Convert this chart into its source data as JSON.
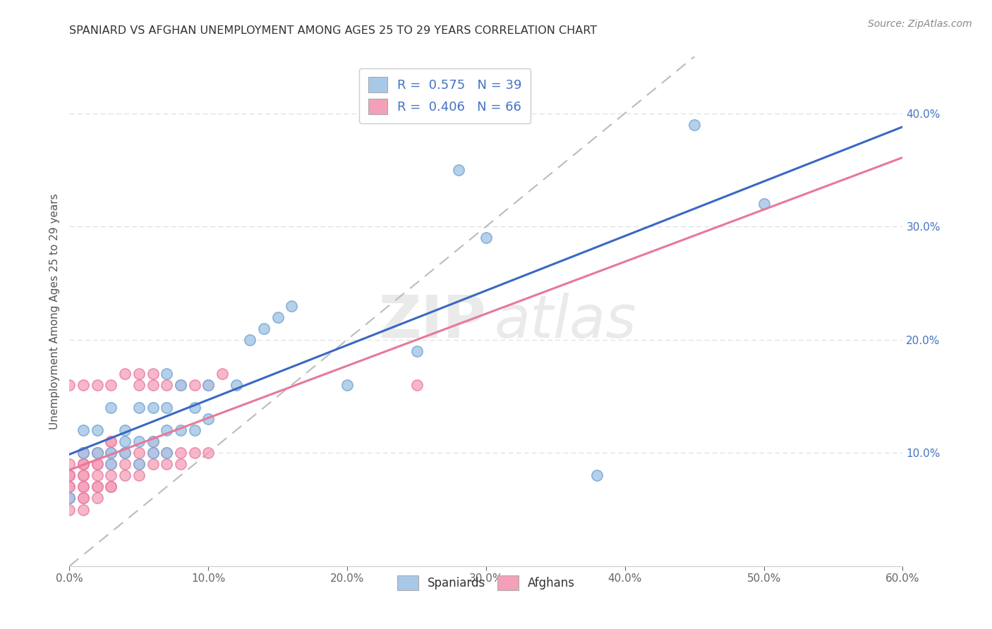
{
  "title": "SPANIARD VS AFGHAN UNEMPLOYMENT AMONG AGES 25 TO 29 YEARS CORRELATION CHART",
  "source": "Source: ZipAtlas.com",
  "ylabel": "Unemployment Among Ages 25 to 29 years",
  "xlim": [
    0.0,
    0.6
  ],
  "ylim": [
    0.0,
    0.45
  ],
  "xticks": [
    0.0,
    0.1,
    0.2,
    0.3,
    0.4,
    0.5,
    0.6
  ],
  "yticks": [
    0.1,
    0.2,
    0.3,
    0.4
  ],
  "spaniards_color": "#a8c8e8",
  "afghans_color": "#f4a0b8",
  "spaniards_edge": "#7aaad4",
  "afghans_edge": "#e878a0",
  "spaniards_R": 0.575,
  "spaniards_N": 39,
  "afghans_R": 0.406,
  "afghans_N": 66,
  "spaniards_line_color": "#3a68c4",
  "afghans_line_color": "#e87898",
  "diagonal_color": "#bbbbbb",
  "grid_color": "#dddddd",
  "spaniards_x": [
    0.0,
    0.01,
    0.01,
    0.02,
    0.02,
    0.03,
    0.03,
    0.03,
    0.04,
    0.04,
    0.04,
    0.05,
    0.05,
    0.05,
    0.06,
    0.06,
    0.06,
    0.07,
    0.07,
    0.07,
    0.07,
    0.08,
    0.08,
    0.09,
    0.09,
    0.1,
    0.1,
    0.12,
    0.13,
    0.14,
    0.15,
    0.16,
    0.2,
    0.25,
    0.28,
    0.3,
    0.38,
    0.45,
    0.5
  ],
  "spaniards_y": [
    0.06,
    0.1,
    0.12,
    0.1,
    0.12,
    0.09,
    0.1,
    0.14,
    0.1,
    0.11,
    0.12,
    0.09,
    0.11,
    0.14,
    0.1,
    0.11,
    0.14,
    0.1,
    0.12,
    0.14,
    0.17,
    0.12,
    0.16,
    0.12,
    0.14,
    0.13,
    0.16,
    0.16,
    0.2,
    0.21,
    0.22,
    0.23,
    0.16,
    0.19,
    0.35,
    0.29,
    0.08,
    0.39,
    0.32
  ],
  "afghans_x": [
    0.0,
    0.0,
    0.0,
    0.0,
    0.0,
    0.0,
    0.0,
    0.0,
    0.0,
    0.0,
    0.01,
    0.01,
    0.01,
    0.01,
    0.01,
    0.01,
    0.01,
    0.01,
    0.01,
    0.01,
    0.01,
    0.01,
    0.01,
    0.02,
    0.02,
    0.02,
    0.02,
    0.02,
    0.02,
    0.02,
    0.02,
    0.02,
    0.03,
    0.03,
    0.03,
    0.03,
    0.03,
    0.03,
    0.03,
    0.03,
    0.04,
    0.04,
    0.04,
    0.04,
    0.05,
    0.05,
    0.05,
    0.05,
    0.05,
    0.06,
    0.06,
    0.06,
    0.06,
    0.06,
    0.07,
    0.07,
    0.07,
    0.08,
    0.08,
    0.08,
    0.09,
    0.09,
    0.1,
    0.1,
    0.11,
    0.25
  ],
  "afghans_y": [
    0.05,
    0.06,
    0.06,
    0.07,
    0.07,
    0.08,
    0.08,
    0.08,
    0.09,
    0.16,
    0.05,
    0.06,
    0.06,
    0.07,
    0.07,
    0.08,
    0.08,
    0.09,
    0.09,
    0.09,
    0.1,
    0.1,
    0.16,
    0.06,
    0.07,
    0.07,
    0.08,
    0.09,
    0.09,
    0.1,
    0.1,
    0.16,
    0.07,
    0.07,
    0.08,
    0.09,
    0.1,
    0.11,
    0.11,
    0.16,
    0.08,
    0.09,
    0.1,
    0.17,
    0.08,
    0.09,
    0.1,
    0.16,
    0.17,
    0.09,
    0.1,
    0.11,
    0.16,
    0.17,
    0.09,
    0.1,
    0.16,
    0.09,
    0.1,
    0.16,
    0.1,
    0.16,
    0.1,
    0.16,
    0.17,
    0.16
  ]
}
